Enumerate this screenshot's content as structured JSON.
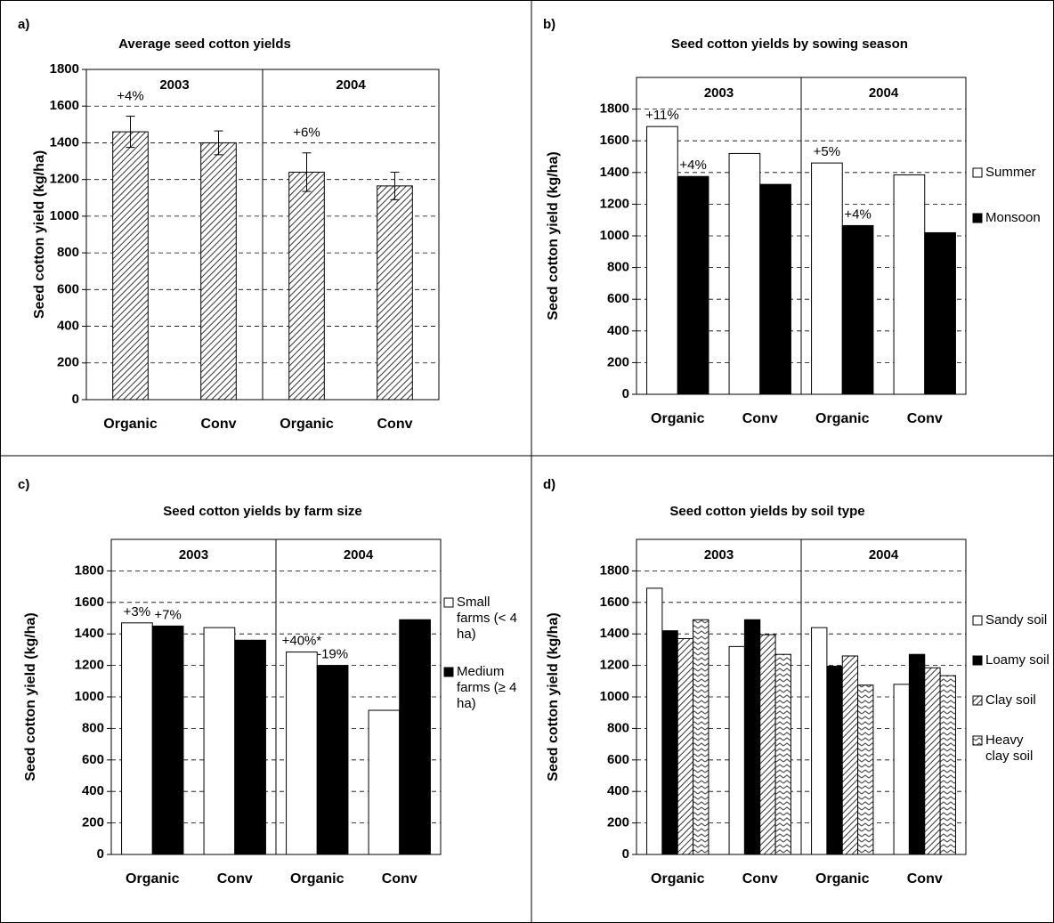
{
  "chart_data": [
    {
      "type": "bar",
      "label": "a)",
      "title": "Average seed cotton yields",
      "y_label": "Seed cotton yield (kg/ha)",
      "groups": [
        "2003",
        "2004"
      ],
      "categories": [
        "Organic",
        "Conv",
        "Organic",
        "Conv"
      ],
      "ylim": [
        0,
        1800
      ],
      "yticks": [
        0,
        200,
        400,
        600,
        800,
        1000,
        1200,
        1400,
        1600,
        1800
      ],
      "grid": true,
      "series": [
        {
          "color": "#ffffff",
          "hatch": "diagonal",
          "values": [
            1460,
            1400,
            1240,
            1165
          ],
          "errors": [
            85,
            65,
            105,
            75
          ],
          "annotations": [
            "+4%",
            null,
            "+6%",
            null
          ]
        }
      ]
    },
    {
      "type": "bar",
      "label": "b)",
      "title": "Seed cotton yields by sowing season",
      "y_label": "Seed cotton yield (kg/ha)",
      "groups": [
        "2003",
        "2004"
      ],
      "categories": [
        "Organic",
        "Conv",
        "Organic",
        "Conv"
      ],
      "ylim": [
        0,
        2000
      ],
      "yticks": [
        0,
        200,
        400,
        600,
        800,
        1000,
        1200,
        1400,
        1600,
        1800
      ],
      "grid": true,
      "series": [
        {
          "name": "Summer",
          "color": "#ffffff",
          "values": [
            1690,
            1520,
            1460,
            1385
          ],
          "annotations": [
            "+11%",
            null,
            "+5%",
            null
          ]
        },
        {
          "name": "Monsoon",
          "color": "#000000",
          "values": [
            1375,
            1325,
            1065,
            1020
          ],
          "annotations": [
            "+4%",
            null,
            "+4%",
            null
          ]
        }
      ]
    },
    {
      "type": "bar",
      "label": "c)",
      "title": "Seed cotton yields by farm size",
      "y_label": "Seed cotton yield (kg/ha)",
      "groups": [
        "2003",
        "2004"
      ],
      "categories": [
        "Organic",
        "Conv",
        "Organic",
        "Conv"
      ],
      "ylim": [
        0,
        2000
      ],
      "yticks": [
        0,
        200,
        400,
        600,
        800,
        1000,
        1200,
        1400,
        1600,
        1800
      ],
      "grid": true,
      "series": [
        {
          "name": "Small farms (< 4 ha)",
          "color": "#ffffff",
          "values": [
            1470,
            1440,
            1285,
            915
          ],
          "annotations": [
            "+3%",
            null,
            "+40%*",
            null
          ]
        },
        {
          "name": "Medium farms (≥ 4 ha)",
          "color": "#000000",
          "values": [
            1450,
            1360,
            1200,
            1490
          ],
          "annotations": [
            "+7%",
            null,
            "-19%",
            null
          ]
        }
      ]
    },
    {
      "type": "bar",
      "label": "d)",
      "title": "Seed cotton yields by soil type",
      "y_label": "Seed cotton yield (kg/ha)",
      "groups": [
        "2003",
        "2004"
      ],
      "categories": [
        "Organic",
        "Conv",
        "Organic",
        "Conv"
      ],
      "ylim": [
        0,
        2000
      ],
      "yticks": [
        0,
        200,
        400,
        600,
        800,
        1000,
        1200,
        1400,
        1600,
        1800
      ],
      "grid": true,
      "series": [
        {
          "name": "Sandy soil",
          "color": "#ffffff",
          "values": [
            1690,
            1320,
            1440,
            1080
          ]
        },
        {
          "name": "Loamy soil",
          "color": "#000000",
          "values": [
            1420,
            1490,
            1195,
            1270
          ]
        },
        {
          "name": "Clay soil",
          "color": "#ffffff",
          "hatch": "diagonal",
          "values": [
            1370,
            1395,
            1260,
            1185
          ]
        },
        {
          "name": "Heavy clay soil",
          "color": "#ffffff",
          "hatch": "zigzag",
          "values": [
            1490,
            1270,
            1075,
            1135
          ]
        }
      ]
    }
  ]
}
